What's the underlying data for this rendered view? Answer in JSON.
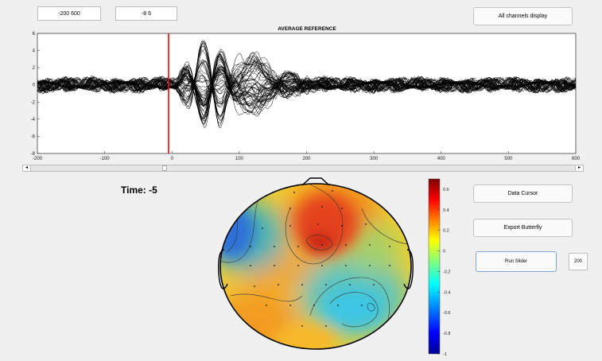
{
  "inputs": {
    "time_range": "-200  600",
    "amp_range": "-8  6",
    "slider_value": "200"
  },
  "buttons": {
    "all_channels": "All channels display",
    "data_cursor": "Data Cursor",
    "export_butterfly": "Export Butterfly",
    "run_slider": "Run Slider"
  },
  "time_label": "Time: -5",
  "chart_data": [
    {
      "type": "line",
      "title": "AVERAGE REFERENCE",
      "xlim": [
        -200,
        600
      ],
      "ylim": [
        -8,
        6
      ],
      "x_ticks": [
        "-200",
        "-100",
        "0",
        "100",
        "200",
        "300",
        "400",
        "500",
        "600"
      ],
      "y_ticks": [
        "6",
        "4",
        "2",
        "0",
        "-2",
        "-4",
        "-6",
        "-8"
      ],
      "cursor_x": -5,
      "colors": {
        "traces": "#000000",
        "cursor": "#ff0000"
      }
    },
    {
      "type": "heatmap",
      "colorbar_ticks": [
        "0.6",
        "0.4",
        "0.2",
        "0",
        "-0.2",
        "-0.4",
        "-0.6",
        "-0.8",
        "-1"
      ],
      "clim": [
        -1,
        0.7
      ],
      "colormap": "jet"
    }
  ],
  "slider": {
    "position": 0.243
  }
}
